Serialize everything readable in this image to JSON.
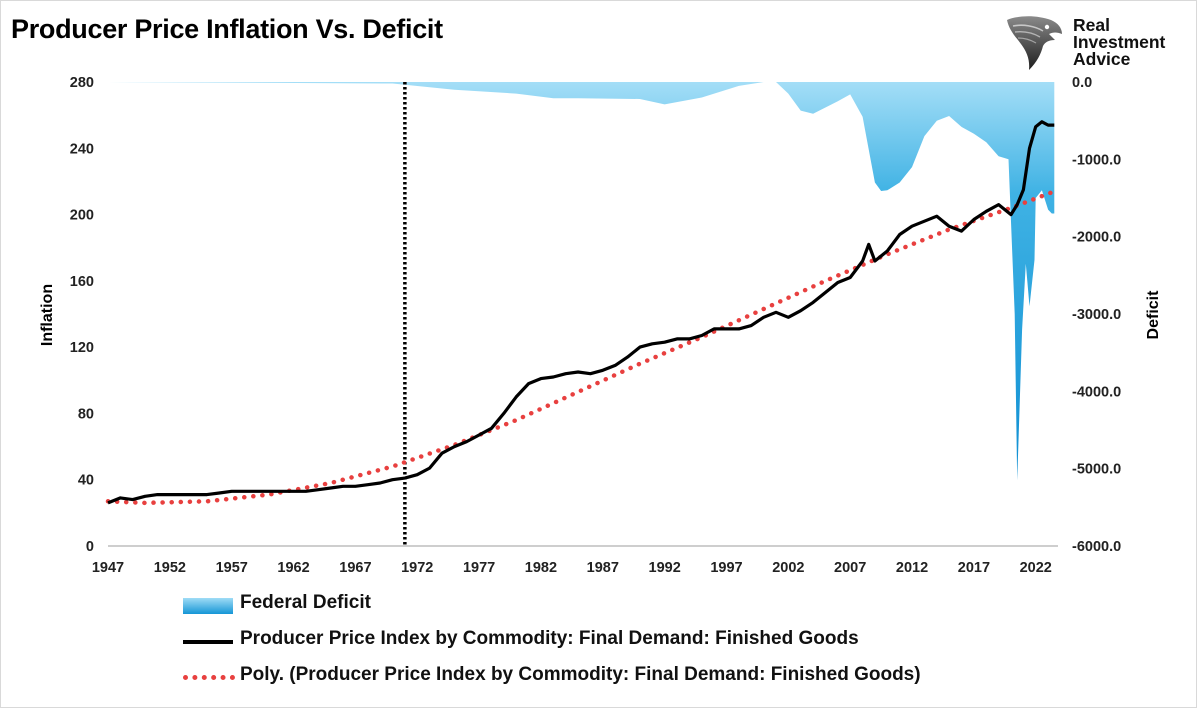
{
  "title": "Producer Price Inflation Vs. Deficit",
  "logo": {
    "line1": "Real",
    "line2": "Investment",
    "line3": "Advice",
    "icon": "eagle-head-icon"
  },
  "colors": {
    "deficit_top": "#a4def7",
    "deficit_bottom": "#0f8fd3",
    "ppi": "#000000",
    "trend": "#e8403f",
    "marker": "#000000"
  },
  "legend": {
    "deficit": "Federal Deficit",
    "ppi": "Producer Price Index by Commodity: Final Demand: Finished Goods",
    "trend": "Poly. (Producer Price Index by Commodity: Final Demand: Finished Goods)"
  },
  "chart_data": {
    "type": "line",
    "xlabel": "",
    "ylabel": "Inflation",
    "y2label": "Deficit",
    "xlim": [
      1947,
      2023.8
    ],
    "ylim": [
      0,
      280
    ],
    "y2lim": [
      -6000,
      0
    ],
    "x_ticks": [
      "1947",
      "1952",
      "1957",
      "1962",
      "1967",
      "1972",
      "1977",
      "1982",
      "1987",
      "1992",
      "1997",
      "2002",
      "2007",
      "2012",
      "2017",
      "2022"
    ],
    "y_ticks": [
      "0",
      "40",
      "80",
      "120",
      "160",
      "200",
      "240",
      "280"
    ],
    "y2_ticks": [
      "-6000.0",
      "-5000.0",
      "-4000.0",
      "-3000.0",
      "-2000.0",
      "-1000.0",
      "0.0"
    ],
    "vertical_marker_x": 1971,
    "series": [
      {
        "name": "Producer Price Index by Commodity: Final Demand: Finished Goods",
        "kind": "line",
        "axis": "left",
        "x": [
          1947,
          1948,
          1949,
          1950,
          1951,
          1952,
          1953,
          1954,
          1955,
          1956,
          1957,
          1958,
          1959,
          1960,
          1961,
          1962,
          1963,
          1964,
          1965,
          1966,
          1967,
          1968,
          1969,
          1970,
          1971,
          1972,
          1973,
          1974,
          1975,
          1976,
          1977,
          1978,
          1979,
          1980,
          1981,
          1982,
          1983,
          1984,
          1985,
          1986,
          1987,
          1988,
          1989,
          1990,
          1991,
          1992,
          1993,
          1994,
          1995,
          1996,
          1997,
          1998,
          1999,
          2000,
          2001,
          2002,
          2003,
          2004,
          2005,
          2006,
          2007,
          2008,
          2008.5,
          2009,
          2010,
          2011,
          2012,
          2013,
          2014,
          2015,
          2016,
          2017,
          2018,
          2019,
          2020,
          2020.5,
          2021,
          2021.5,
          2022,
          2022.5,
          2023,
          2023.5
        ],
        "values": [
          26,
          29,
          28,
          30,
          31,
          31,
          31,
          31,
          31,
          32,
          33,
          33,
          33,
          33,
          33,
          33,
          33,
          34,
          35,
          36,
          36,
          37,
          38,
          40,
          41,
          43,
          47,
          56,
          60,
          63,
          67,
          71,
          80,
          90,
          98,
          101,
          102,
          104,
          105,
          104,
          106,
          109,
          114,
          120,
          122,
          123,
          125,
          125,
          127,
          131,
          131,
          131,
          133,
          138,
          141,
          138,
          142,
          147,
          153,
          159,
          162,
          172,
          182,
          172,
          178,
          188,
          193,
          196,
          199,
          193,
          190,
          197,
          202,
          206,
          200,
          206,
          215,
          240,
          253,
          256,
          254,
          254
        ]
      },
      {
        "name": "Poly. (Producer Price Index by Commodity: Final Demand: Finished Goods)",
        "kind": "trend",
        "axis": "left",
        "x": [
          1947,
          1950,
          1955,
          1960,
          1965,
          1970,
          1975,
          1980,
          1985,
          1990,
          1995,
          2000,
          2005,
          2010,
          2015,
          2020,
          2023.5
        ],
        "values": [
          27,
          26,
          27,
          31,
          38,
          48,
          61,
          76,
          93,
          110,
          126,
          143,
          160,
          176,
          191,
          204,
          214
        ]
      },
      {
        "name": "Federal Deficit",
        "kind": "area",
        "axis": "right",
        "x": [
          1947,
          1970,
          1975,
          1980,
          1983,
          1985,
          1990,
          1992,
          1995,
          1998,
          2000,
          2001,
          2002,
          2003,
          2004,
          2006,
          2007,
          2008,
          2009,
          2009.5,
          2010,
          2011,
          2012,
          2013,
          2014,
          2015,
          2016,
          2017,
          2018,
          2019,
          2019.8,
          2020.3,
          2020.5,
          2020.9,
          2021.2,
          2021.5,
          2021.9,
          2022,
          2022.5,
          2023,
          2023.3,
          2023.5
        ],
        "values": [
          0,
          -20,
          -100,
          -150,
          -210,
          -210,
          -220,
          -290,
          -200,
          -50,
          0,
          0,
          -150,
          -370,
          -410,
          -250,
          -160,
          -450,
          -1300,
          -1410,
          -1400,
          -1300,
          -1100,
          -700,
          -500,
          -440,
          -580,
          -670,
          -780,
          -960,
          -1000,
          -3000,
          -5150,
          -3200,
          -2350,
          -2900,
          -2300,
          -1500,
          -1400,
          -1650,
          -1700,
          -1700
        ]
      }
    ]
  }
}
